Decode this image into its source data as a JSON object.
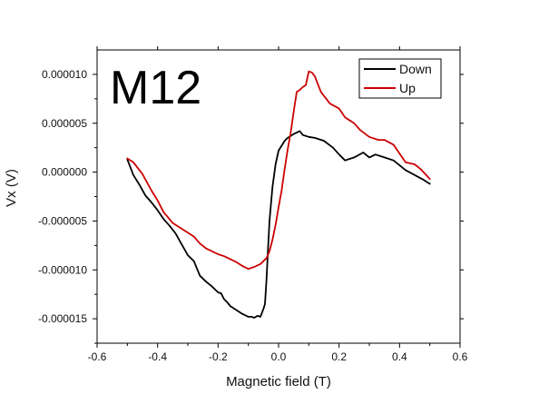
{
  "chart_data": {
    "type": "line",
    "title": "M12",
    "xlabel": "Magnetic field (T)",
    "ylabel": "Vx (V)",
    "xlim": [
      -0.6,
      0.6
    ],
    "ylim": [
      -1.75e-05,
      1.25e-05
    ],
    "x_ticks": [
      -0.6,
      -0.4,
      -0.2,
      0.0,
      0.2,
      0.4,
      0.6
    ],
    "x_tick_labels": [
      "-0.6",
      "-0.4",
      "-0.2",
      "0.0",
      "0.2",
      "0.4",
      "0.6"
    ],
    "y_ticks": [
      1e-05,
      5e-06,
      0.0,
      -5e-06,
      -1e-05,
      -1.5e-05
    ],
    "y_tick_labels": [
      "0.000010",
      "0.000005",
      "0.000000",
      "-0.000005",
      "-0.000010",
      "-0.000015"
    ],
    "grid": false,
    "legend_position": "top-right",
    "series": [
      {
        "name": "Down",
        "color": "#000000",
        "x": [
          0.5,
          0.48,
          0.45,
          0.42,
          0.38,
          0.35,
          0.32,
          0.3,
          0.28,
          0.25,
          0.22,
          0.2,
          0.18,
          0.15,
          0.12,
          0.1,
          0.08,
          0.07,
          0.05,
          0.03,
          0.02,
          0.0,
          -0.01,
          -0.02,
          -0.03,
          -0.035,
          -0.04,
          -0.045,
          -0.05,
          -0.06,
          -0.07,
          -0.08,
          -0.09,
          -0.1,
          -0.12,
          -0.14,
          -0.16,
          -0.17,
          -0.18,
          -0.19,
          -0.2,
          -0.22,
          -0.24,
          -0.26,
          -0.28,
          -0.3,
          -0.32,
          -0.34,
          -0.36,
          -0.38,
          -0.4,
          -0.42,
          -0.44,
          -0.46,
          -0.48,
          -0.5
        ],
        "y": [
          -1.2e-06,
          -8e-07,
          -3e-07,
          2e-07,
          1.2e-06,
          1.5e-06,
          1.8e-06,
          1.5e-06,
          2e-06,
          1.5e-06,
          1.2e-06,
          1.8e-06,
          2.5e-06,
          3.2e-06,
          3.5e-06,
          3.6e-06,
          3.8e-06,
          4.2e-06,
          3.9e-06,
          3.5e-06,
          3.2e-06,
          2.2e-06,
          8e-07,
          -1.5e-06,
          -5e-06,
          -8e-06,
          -1.1e-05,
          -1.35e-05,
          -1.4e-05,
          -1.48e-05,
          -1.47e-05,
          -1.49e-05,
          -1.48e-05,
          -1.48e-05,
          -1.45e-05,
          -1.41e-05,
          -1.37e-05,
          -1.33e-05,
          -1.3e-05,
          -1.24e-05,
          -1.23e-05,
          -1.17e-05,
          -1.12e-05,
          -1.06e-05,
          -9.1e-06,
          -8.5e-06,
          -7.4e-06,
          -6.3e-06,
          -5.5e-06,
          -4.8e-06,
          -3.9e-06,
          -3.1e-06,
          -2.4e-06,
          -1.3e-06,
          -3e-07,
          1.3e-06
        ]
      },
      {
        "name": "Up",
        "color": "#cc0000",
        "x": [
          -0.5,
          -0.48,
          -0.45,
          -0.42,
          -0.4,
          -0.38,
          -0.35,
          -0.32,
          -0.3,
          -0.28,
          -0.26,
          -0.24,
          -0.22,
          -0.2,
          -0.18,
          -0.16,
          -0.14,
          -0.12,
          -0.1,
          -0.08,
          -0.06,
          -0.04,
          -0.03,
          -0.02,
          -0.01,
          0.0,
          0.01,
          0.02,
          0.03,
          0.04,
          0.05,
          0.06,
          0.07,
          0.08,
          0.09,
          0.1,
          0.11,
          0.12,
          0.13,
          0.14,
          0.15,
          0.17,
          0.2,
          0.22,
          0.25,
          0.27,
          0.3,
          0.33,
          0.35,
          0.38,
          0.4,
          0.42,
          0.45,
          0.47,
          0.5
        ],
        "y": [
          1.4e-06,
          1e-06,
          -2e-07,
          -1.9e-06,
          -2.9e-06,
          -4.1e-06,
          -5.2e-06,
          -5.8e-06,
          -6.2e-06,
          -6.6e-06,
          -7.3e-06,
          -7.8e-06,
          -8.1e-06,
          -8.4e-06,
          -8.6e-06,
          -8.9e-06,
          -9.2e-06,
          -9.6e-06,
          -9.9e-06,
          -9.7e-06,
          -9.4e-06,
          -8.8e-06,
          -8.1e-06,
          -6.9e-06,
          -5.4e-06,
          -3.6e-06,
          -1.9e-06,
          3e-07,
          2.3e-06,
          4e-06,
          6.2e-06,
          8.2e-06,
          8.4e-06,
          8.7e-06,
          8.9e-06,
          1.03e-05,
          1.02e-05,
          9.8e-06,
          9e-06,
          8.2e-06,
          7.8e-06,
          7e-06,
          6.5e-06,
          5.6e-06,
          5e-06,
          4.3e-06,
          3.6e-06,
          3.3e-06,
          3.3e-06,
          2.8e-06,
          1.9e-06,
          1e-06,
          8e-07,
          3e-07,
          -7e-07
        ]
      }
    ]
  }
}
